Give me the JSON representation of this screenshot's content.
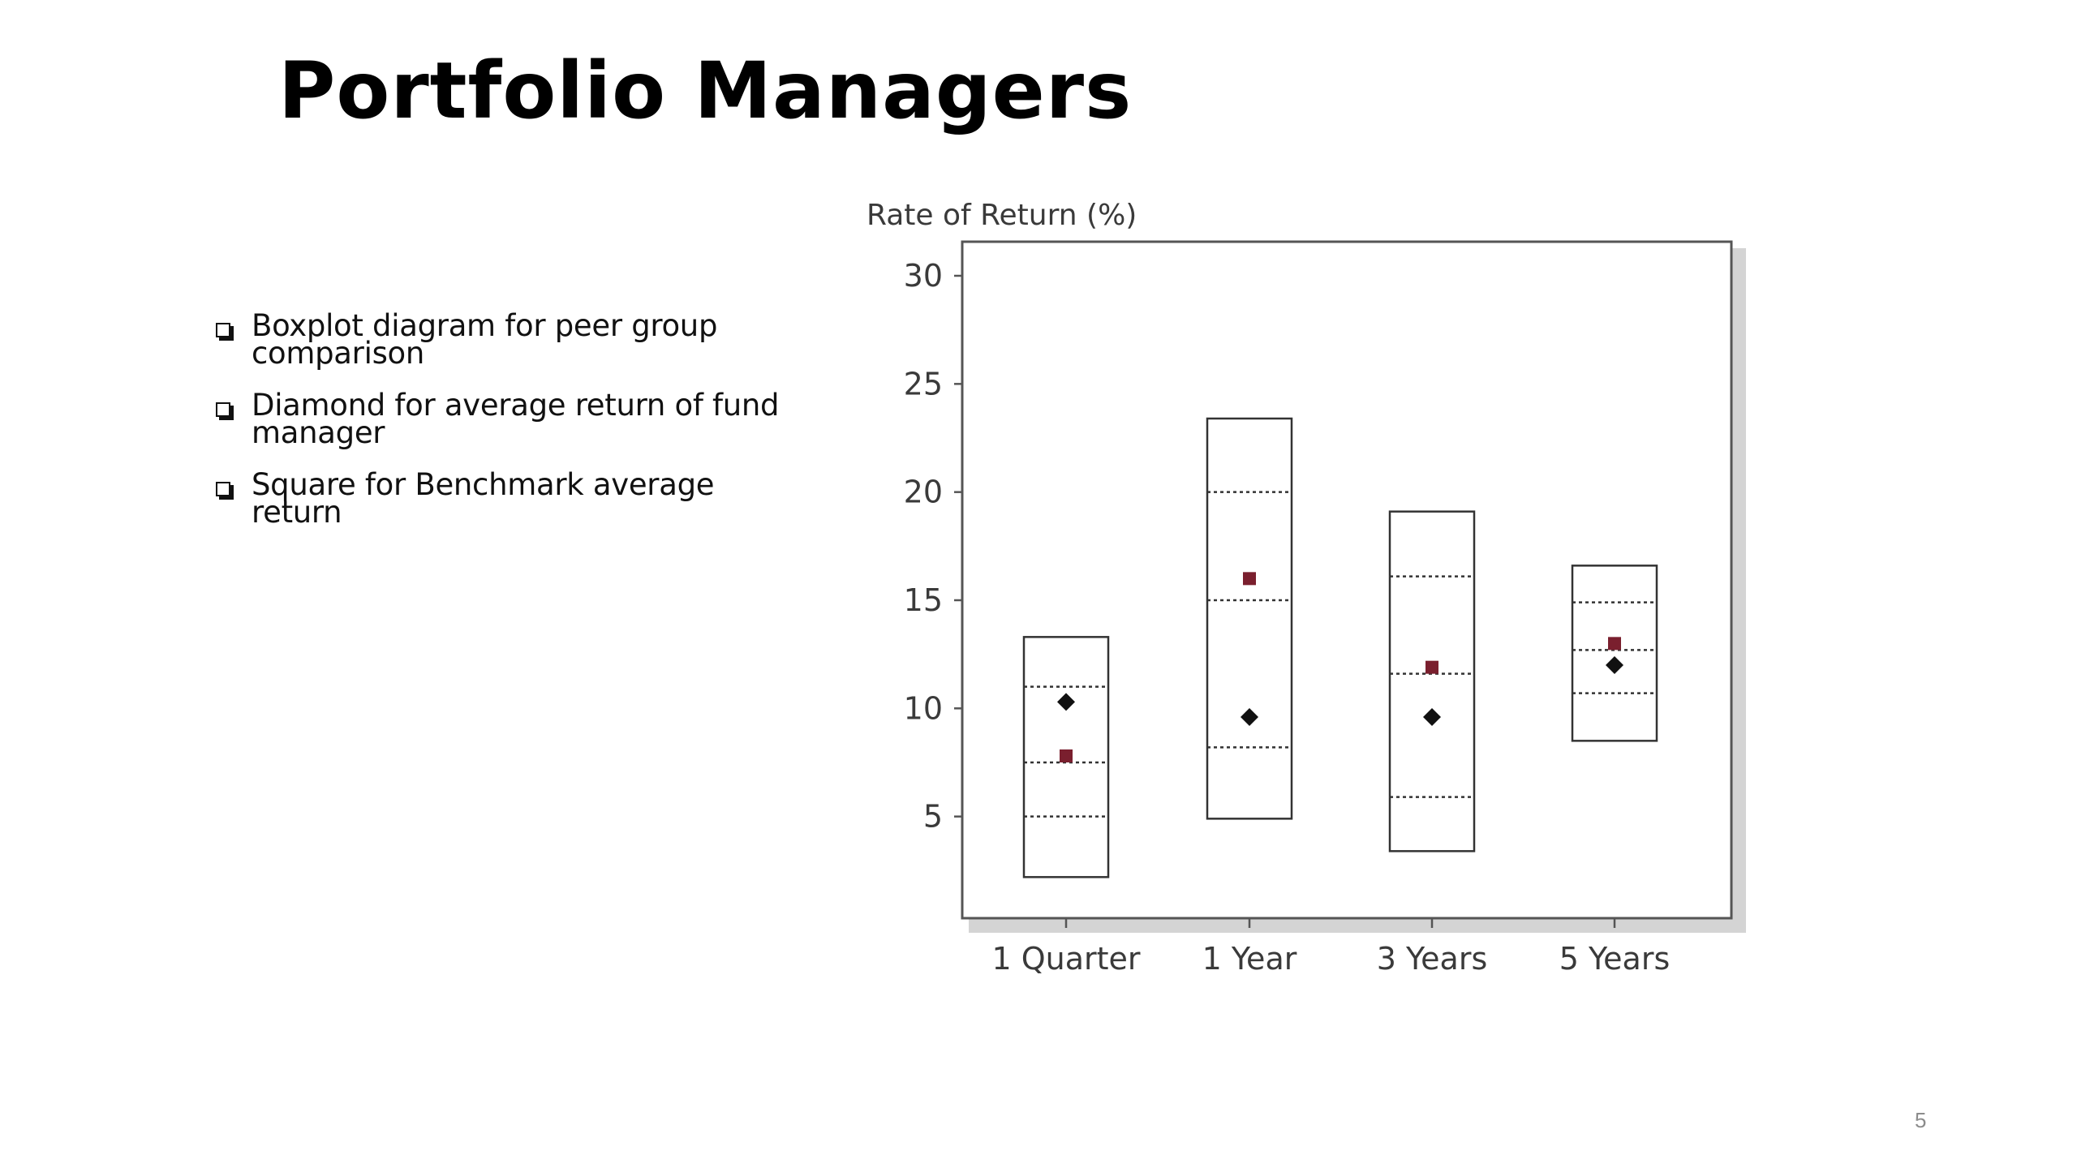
{
  "slide": {
    "title": "Portfolio Managers",
    "page_number": "5"
  },
  "bullets": [
    "Boxplot diagram for peer group comparison",
    "Diamond for average return of fund manager",
    "Square for Benchmark average return"
  ],
  "colors": {
    "benchmark_marker": "#7a1f2e",
    "fund_marker": "#111111",
    "box_stroke": "#333333",
    "axis_text": "#3a3a3a"
  },
  "chart_data": {
    "type": "boxplot",
    "ylabel": "Rate of Return (%)",
    "xlabel": "",
    "ylim": [
      0,
      30
    ],
    "yticks": [
      5,
      10,
      15,
      20,
      25,
      30
    ],
    "categories": [
      "1 Quarter",
      "1 Year",
      "3 Years",
      "5 Years"
    ],
    "boxes": [
      {
        "min": 2.2,
        "q1": 5.0,
        "median": 7.5,
        "q3": 11.0,
        "max": 13.3
      },
      {
        "min": 4.9,
        "q1": 8.2,
        "median": 15.0,
        "q3": 20.0,
        "max": 23.4
      },
      {
        "min": 3.4,
        "q1": 5.9,
        "median": 11.6,
        "q3": 16.1,
        "max": 19.1
      },
      {
        "min": 8.5,
        "q1": 10.7,
        "median": 12.7,
        "q3": 14.9,
        "max": 16.6
      }
    ],
    "fund_average_diamond": [
      10.3,
      9.6,
      9.6,
      12.0
    ],
    "benchmark_average_square": [
      7.8,
      16.0,
      11.9,
      13.0
    ],
    "grid": false,
    "legend": "none"
  }
}
